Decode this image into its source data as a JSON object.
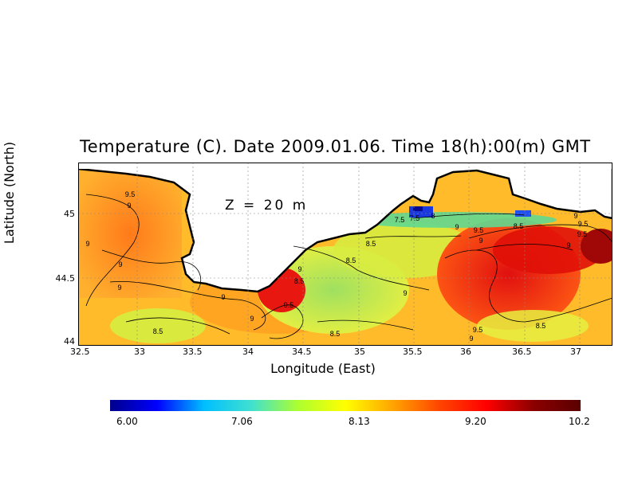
{
  "title": "Temperature (C). Date 2009.01.06. Time 18(h):00(m) GMT",
  "depth_label": "Z  =  20  m",
  "x_axis": {
    "label": "Longitude (East)",
    "ticks": [
      "32.5",
      "33",
      "33.5",
      "34",
      "34.5",
      "35",
      "35.5",
      "36",
      "36.5",
      "37"
    ]
  },
  "y_axis": {
    "label": "Latitude (North)",
    "ticks": [
      "45",
      "44.5",
      "44"
    ]
  },
  "colorbar": {
    "ticks": [
      "6.00",
      "7.06",
      "8.13",
      "9.20",
      "10.2"
    ],
    "colors": [
      "#00008b",
      "#0000ff",
      "#00bfff",
      "#40e0d0",
      "#adff2f",
      "#ffff00",
      "#ffa500",
      "#ff4500",
      "#ff0000",
      "#8b0000",
      "#5a0000"
    ]
  },
  "contour_labels": [
    "9.5",
    "9",
    "9",
    "9",
    "9",
    "9",
    "8.5",
    "9",
    "9.5",
    "8.5",
    "8.5",
    "9",
    "8.5",
    "7.5",
    "7.5",
    "8",
    "8.5",
    "9",
    "9.5",
    "9",
    "9.5",
    "9",
    "8.5",
    "9",
    "9.5",
    "9",
    "8.5",
    "9.5",
    "9"
  ],
  "extent": {
    "lon": [
      32.5,
      37.3
    ],
    "lat": [
      44.0,
      45.35
    ]
  }
}
